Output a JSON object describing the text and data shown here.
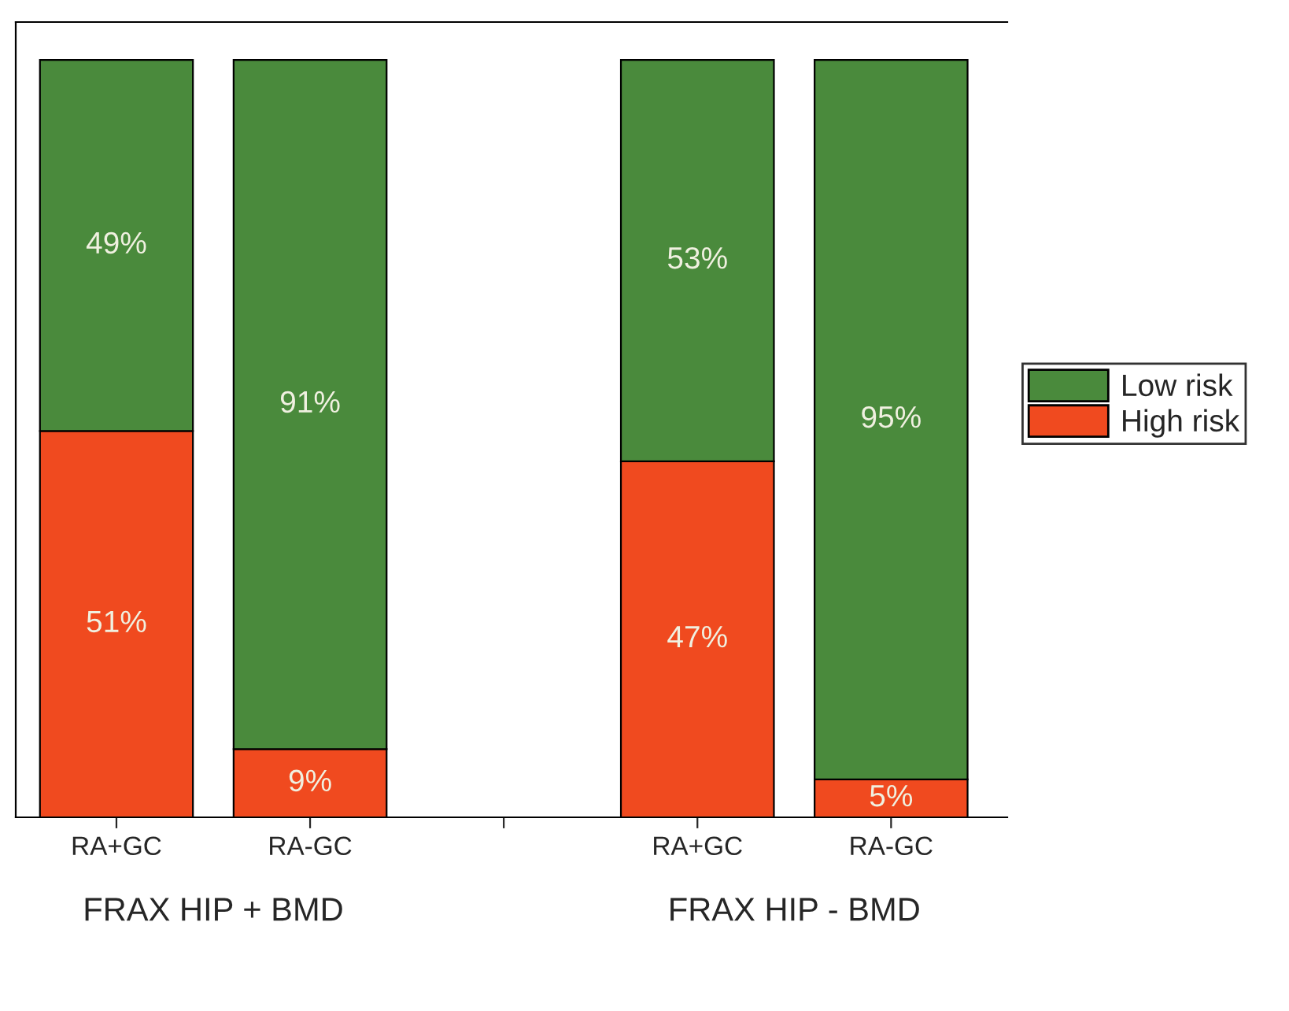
{
  "chart_data": {
    "type": "bar",
    "stacked": true,
    "categories": [
      "RA+GC",
      "RA-GC",
      null,
      "RA+GC",
      "RA-GC"
    ],
    "series": [
      {
        "name": "High risk",
        "color": "#f04a1f",
        "values": [
          51,
          9,
          null,
          47,
          5
        ],
        "value_labels": [
          "51%",
          "9%",
          null,
          "47%",
          "5%"
        ]
      },
      {
        "name": "Low risk",
        "color": "#4a8a3c",
        "values": [
          49,
          91,
          null,
          53,
          95
        ],
        "value_labels": [
          "49%",
          "91%",
          null,
          "53%",
          "95%"
        ]
      }
    ],
    "annotations": [
      "FRAX HIP + BMD",
      "FRAX HIP - BMD"
    ],
    "legend": "right",
    "grid": false,
    "tick_labels": "x"
  }
}
